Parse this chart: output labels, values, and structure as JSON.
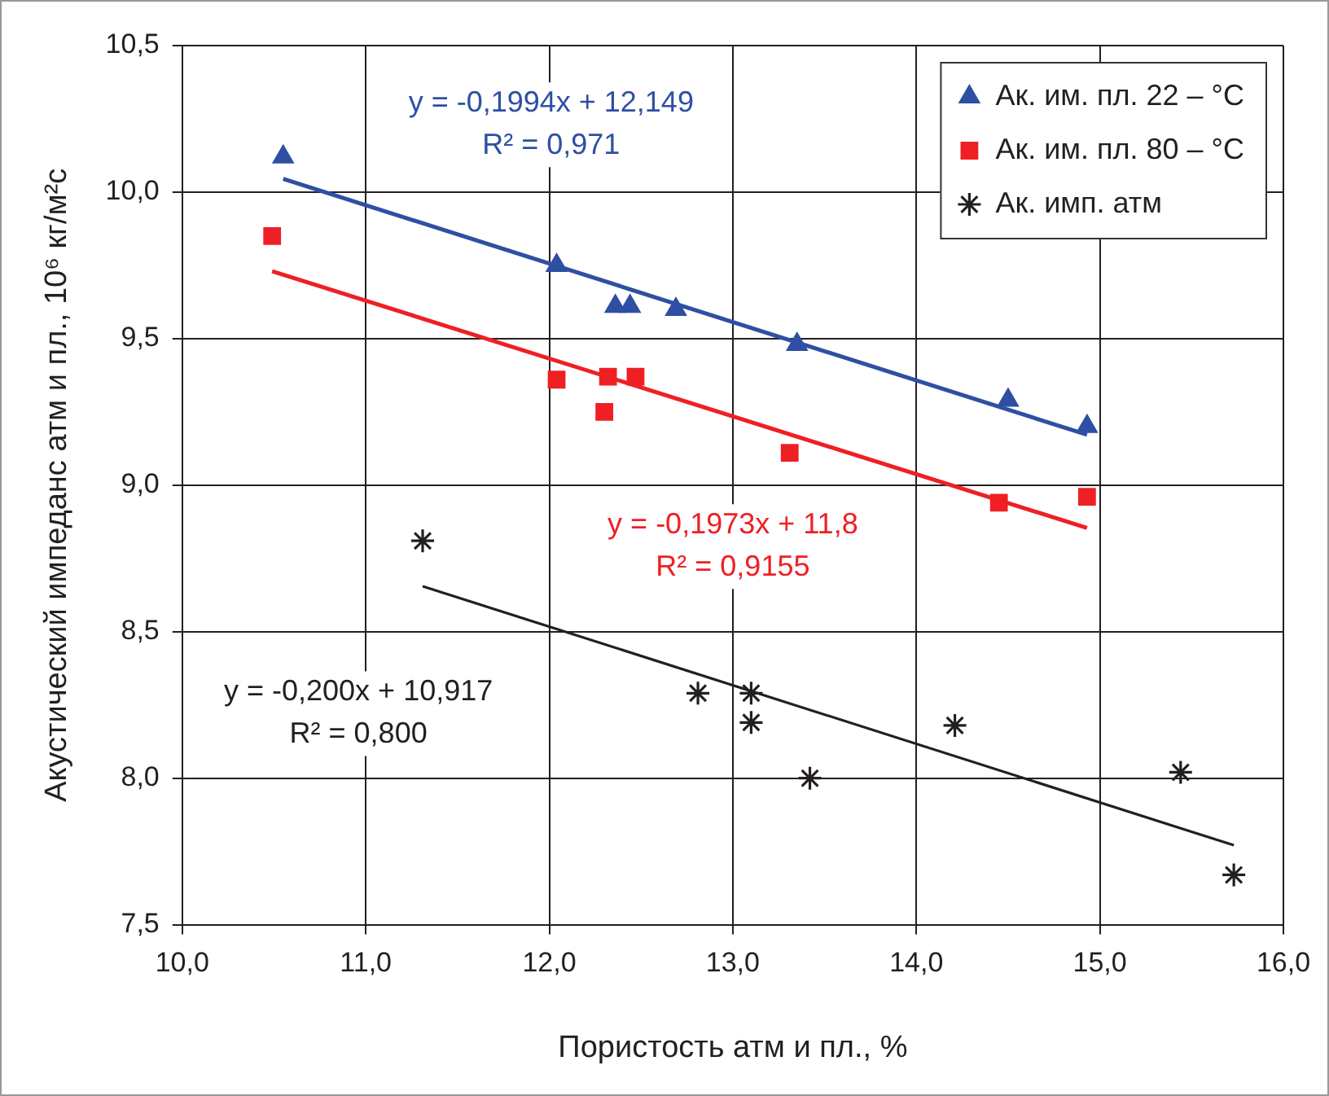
{
  "chart_data": {
    "type": "scatter",
    "xlabel": "Пористость атм и пл., %",
    "ylabel": "Акустический импеданс атм и пл., 10⁶ кг/м²с",
    "xlim": [
      10,
      16
    ],
    "xticks": [
      {
        "value": 10,
        "label": "10,0"
      },
      {
        "value": 11,
        "label": "11,0"
      },
      {
        "value": 12,
        "label": "12,0"
      },
      {
        "value": 13,
        "label": "13,0"
      },
      {
        "value": 14,
        "label": "14,0"
      },
      {
        "value": 15,
        "label": "15,0"
      },
      {
        "value": 16,
        "label": "16,0"
      }
    ],
    "ylim": [
      7.5,
      10.5
    ],
    "yticks": [
      {
        "value": 7.5,
        "label": "7,5"
      },
      {
        "value": 8,
        "label": "8,0"
      },
      {
        "value": 8.5,
        "label": "8,5"
      },
      {
        "value": 9,
        "label": "9,0"
      },
      {
        "value": 9.5,
        "label": "9,5"
      },
      {
        "value": 10,
        "label": "10,0"
      },
      {
        "value": 10.5,
        "label": "10,5"
      }
    ],
    "grid": true,
    "legend": "top right",
    "series": [
      {
        "name": "Ак. им. пл. 22 – °C",
        "marker": "triangle",
        "color": "#2e4fa3",
        "x": [
          10.55,
          12.04,
          12.36,
          12.44,
          12.69,
          13.35,
          14.5,
          14.93
        ],
        "values": [
          10.12,
          9.75,
          9.61,
          9.61,
          9.6,
          9.48,
          9.29,
          9.2
        ]
      },
      {
        "name": "Ак. им. пл. 80 – °C",
        "marker": "square",
        "color": "#ee2024",
        "x": [
          10.49,
          12.04,
          12.32,
          12.3,
          12.47,
          13.31,
          14.45,
          14.93
        ],
        "values": [
          9.85,
          9.36,
          9.37,
          9.25,
          9.37,
          9.11,
          8.94,
          8.96
        ]
      },
      {
        "name": "Ак. имп. атм",
        "marker": "cross",
        "color": "#231f20",
        "x": [
          11.31,
          12.81,
          13.1,
          13.1,
          13.42,
          14.21,
          15.44,
          15.73
        ],
        "values": [
          8.81,
          8.29,
          8.29,
          8.19,
          8.0,
          8.18,
          8.02,
          7.67
        ]
      },
      {
        "type": "line",
        "marker": "none",
        "color": "#2e4fa3",
        "x": [
          10.55,
          14.93
        ],
        "values": [
          10.045,
          9.172
        ]
      },
      {
        "type": "line",
        "marker": "none",
        "color": "#ee2024",
        "x": [
          10.49,
          14.93
        ],
        "values": [
          9.73,
          8.854
        ]
      },
      {
        "type": "line",
        "marker": "none",
        "color": "#231f20",
        "x": [
          11.31,
          15.73
        ],
        "values": [
          8.655,
          7.771
        ]
      }
    ],
    "annotations": [
      "y = -0,1994x + 12,149\nR² = 0,971",
      "y = -0,1973x + 11,8\nR² = 0,9155",
      "y = -0,200x + 10,917\nR² = 0,800"
    ]
  }
}
